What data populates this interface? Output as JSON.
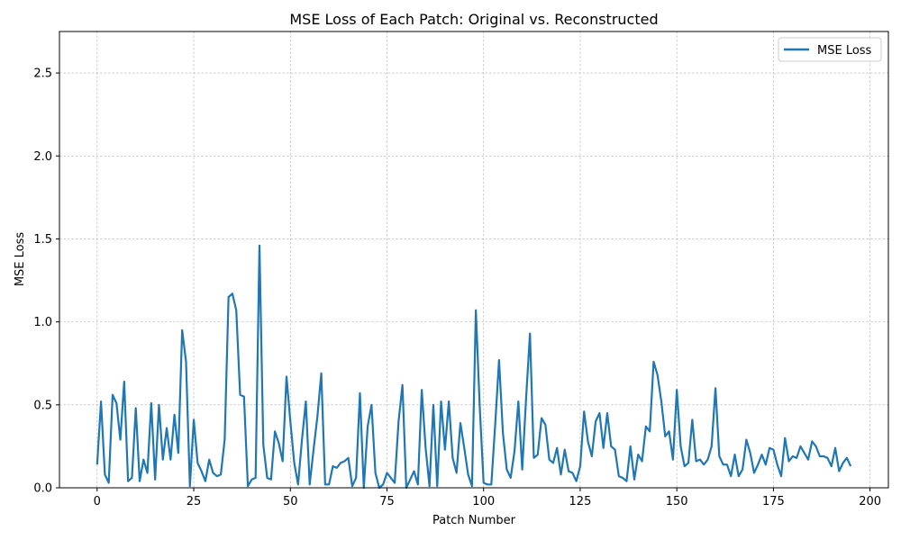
{
  "chart_data": {
    "type": "line",
    "title": "MSE Loss of Each Patch: Original vs. Reconstructed",
    "xlabel": "Patch Number",
    "ylabel": "MSE Loss",
    "xlim": [
      -9.75,
      204.75
    ],
    "ylim": [
      0,
      2.75
    ],
    "xticks": [
      0,
      25,
      50,
      75,
      100,
      125,
      150,
      175,
      200
    ],
    "xtick_labels": [
      "0",
      "25",
      "50",
      "75",
      "100",
      "125",
      "150",
      "175",
      "200"
    ],
    "yticks": [
      0.0,
      0.5,
      1.0,
      1.5,
      2.0,
      2.5
    ],
    "ytick_labels": [
      "0.0",
      "0.5",
      "1.0",
      "1.5",
      "2.0",
      "2.5"
    ],
    "grid": true,
    "legend": "top-right",
    "colors": {
      "series": "#1f77b4",
      "grid": "#b0b0b0",
      "axis": "#000000"
    },
    "series": [
      {
        "name": "MSE Loss",
        "x_start": 0,
        "values": [
          0.14,
          0.52,
          0.08,
          0.03,
          0.56,
          0.51,
          0.29,
          0.64,
          0.04,
          0.06,
          0.48,
          0.04,
          0.17,
          0.09,
          0.51,
          0.05,
          0.5,
          0.17,
          0.36,
          0.17,
          0.44,
          0.21,
          0.95,
          0.76,
          0.01,
          0.41,
          0.15,
          0.1,
          0.04,
          0.17,
          0.09,
          0.07,
          0.08,
          0.29,
          1.15,
          1.17,
          1.07,
          0.56,
          0.55,
          0.01,
          0.05,
          0.06,
          1.46,
          0.26,
          0.06,
          0.05,
          0.34,
          0.27,
          0.16,
          0.67,
          0.4,
          0.15,
          0.02,
          0.29,
          0.52,
          0.02,
          0.23,
          0.43,
          0.69,
          0.02,
          0.02,
          0.13,
          0.12,
          0.15,
          0.16,
          0.18,
          0.01,
          0.06,
          0.57,
          0.0,
          0.37,
          0.5,
          0.09,
          0.0,
          0.02,
          0.09,
          0.06,
          0.03,
          0.4,
          0.62,
          0.0,
          0.05,
          0.1,
          0.02,
          0.59,
          0.24,
          0.01,
          0.5,
          0.01,
          0.52,
          0.23,
          0.52,
          0.18,
          0.09,
          0.39,
          0.24,
          0.08,
          0.01,
          1.07,
          0.49,
          0.03,
          0.02,
          0.02,
          0.38,
          0.77,
          0.33,
          0.11,
          0.06,
          0.22,
          0.52,
          0.11,
          0.54,
          0.93,
          0.18,
          0.2,
          0.42,
          0.38,
          0.17,
          0.15,
          0.24,
          0.08,
          0.23,
          0.1,
          0.09,
          0.04,
          0.13,
          0.46,
          0.28,
          0.19,
          0.4,
          0.45,
          0.24,
          0.45,
          0.25,
          0.23,
          0.07,
          0.06,
          0.04,
          0.25,
          0.05,
          0.2,
          0.16,
          0.37,
          0.34,
          0.76,
          0.68,
          0.52,
          0.31,
          0.34,
          0.17,
          0.59,
          0.25,
          0.13,
          0.15,
          0.41,
          0.16,
          0.17,
          0.14,
          0.17,
          0.25,
          0.6,
          0.19,
          0.14,
          0.14,
          0.07,
          0.2,
          0.07,
          0.11,
          0.29,
          0.21,
          0.09,
          0.14,
          0.2,
          0.14,
          0.24,
          0.23,
          0.14,
          0.07,
          0.3,
          0.16,
          0.19,
          0.18,
          0.25,
          0.21,
          0.17,
          0.28,
          0.25,
          0.19,
          0.19,
          0.18,
          0.13,
          0.24,
          0.1,
          0.15,
          0.18,
          0.13
        ]
      }
    ]
  }
}
